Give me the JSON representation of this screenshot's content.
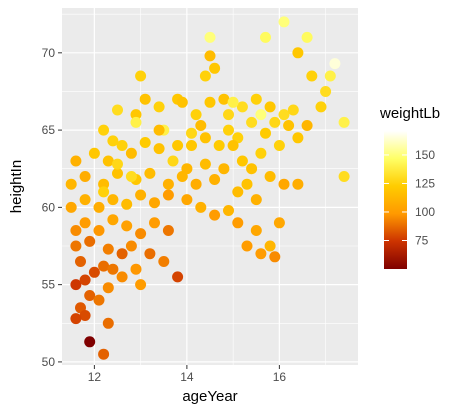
{
  "chart_data": {
    "type": "scatter",
    "title": "",
    "xlabel": "ageYear",
    "ylabel": "heightIn",
    "xlim": [
      11.3,
      17.7
    ],
    "ylim": [
      49.8,
      72.9
    ],
    "x_ticks": [
      12,
      14,
      16
    ],
    "y_ticks": [
      50,
      55,
      60,
      65,
      70
    ],
    "x_tick_labels": [
      "12",
      "14",
      "16"
    ],
    "y_tick_labels": [
      "50",
      "55",
      "60",
      "65",
      "70"
    ],
    "grid": true,
    "legend": {
      "title": "weightLb",
      "placement": "right",
      "type": "colorbar",
      "range": [
        50,
        171
      ],
      "ticks": [
        75,
        100,
        125,
        150
      ],
      "tick_labels": [
        "75",
        "100",
        "125",
        "150"
      ],
      "colors": [
        "#7f0000",
        "#cc3300",
        "#ff9900",
        "#ffcc00",
        "#ffff66",
        "#ffffff"
      ]
    },
    "colors": {
      "panel_background": "#ebebeb",
      "grid_line": "#ffffff",
      "low": "#8b0000",
      "high": "#ffffff"
    },
    "points": [
      [
        11.9,
        51.3,
        50
      ],
      [
        12.2,
        50.5,
        85
      ],
      [
        12.3,
        52.5,
        88
      ],
      [
        11.7,
        53.5,
        83
      ],
      [
        11.8,
        53.0,
        80
      ],
      [
        11.6,
        52.8,
        78
      ],
      [
        11.9,
        54.3,
        85
      ],
      [
        12.1,
        54.0,
        90
      ],
      [
        12.3,
        54.8,
        95
      ],
      [
        11.6,
        55.0,
        75
      ],
      [
        11.8,
        55.3,
        78
      ],
      [
        12.0,
        55.8,
        80
      ],
      [
        11.7,
        56.5,
        85
      ],
      [
        12.2,
        56.2,
        88
      ],
      [
        12.4,
        56.0,
        90
      ],
      [
        12.6,
        55.5,
        95
      ],
      [
        12.9,
        56.0,
        98
      ],
      [
        13.0,
        55.0,
        100
      ],
      [
        11.6,
        57.5,
        90
      ],
      [
        11.9,
        57.8,
        88
      ],
      [
        12.3,
        57.3,
        92
      ],
      [
        12.6,
        57.0,
        85
      ],
      [
        12.8,
        57.5,
        95
      ],
      [
        13.2,
        57.0,
        88
      ],
      [
        13.5,
        56.5,
        92
      ],
      [
        13.8,
        55.5,
        78
      ],
      [
        11.6,
        58.5,
        95
      ],
      [
        11.8,
        59.0,
        100
      ],
      [
        12.1,
        58.5,
        98
      ],
      [
        12.4,
        59.2,
        105
      ],
      [
        12.7,
        58.8,
        102
      ],
      [
        13.0,
        58.3,
        95
      ],
      [
        13.3,
        59.0,
        100
      ],
      [
        13.6,
        58.5,
        90
      ],
      [
        11.5,
        60.0,
        105
      ],
      [
        11.8,
        60.5,
        110
      ],
      [
        12.1,
        60.0,
        108
      ],
      [
        12.4,
        60.5,
        112
      ],
      [
        12.7,
        60.2,
        115
      ],
      [
        13.0,
        60.8,
        110
      ],
      [
        13.3,
        60.3,
        105
      ],
      [
        13.6,
        60.8,
        100
      ],
      [
        11.5,
        61.5,
        112
      ],
      [
        11.8,
        62.0,
        108
      ],
      [
        12.2,
        61.5,
        115
      ],
      [
        12.5,
        62.2,
        118
      ],
      [
        12.9,
        61.8,
        120
      ],
      [
        13.2,
        62.2,
        115
      ],
      [
        13.6,
        61.5,
        110
      ],
      [
        13.9,
        62.0,
        112
      ],
      [
        11.6,
        63.0,
        110
      ],
      [
        12.0,
        63.5,
        120
      ],
      [
        12.3,
        63.0,
        118
      ],
      [
        12.6,
        64.0,
        125
      ],
      [
        12.8,
        63.5,
        115
      ],
      [
        13.1,
        64.2,
        122
      ],
      [
        13.4,
        63.8,
        118
      ],
      [
        13.8,
        64.0,
        120
      ],
      [
        12.2,
        65.0,
        125
      ],
      [
        12.5,
        66.3,
        130
      ],
      [
        12.9,
        66.0,
        120
      ],
      [
        13.1,
        67.0,
        118
      ],
      [
        13.4,
        66.5,
        125
      ],
      [
        13.8,
        67.0,
        120
      ],
      [
        13.0,
        68.5,
        125
      ],
      [
        14.0,
        62.5,
        112
      ],
      [
        14.2,
        61.5,
        108
      ],
      [
        14.4,
        62.8,
        115
      ],
      [
        14.6,
        61.8,
        110
      ],
      [
        14.8,
        62.5,
        112
      ],
      [
        14.1,
        64.0,
        120
      ],
      [
        14.4,
        64.5,
        118
      ],
      [
        14.7,
        64.0,
        122
      ],
      [
        14.9,
        65.0,
        125
      ],
      [
        14.2,
        66.0,
        125
      ],
      [
        14.5,
        66.8,
        120
      ],
      [
        14.8,
        67.0,
        118
      ],
      [
        14.4,
        68.5,
        125
      ],
      [
        14.6,
        69.0,
        120
      ],
      [
        14.5,
        69.8,
        115
      ],
      [
        14.9,
        66.0,
        128
      ],
      [
        14.0,
        60.5,
        105
      ],
      [
        14.3,
        60.0,
        110
      ],
      [
        14.6,
        59.5,
        100
      ],
      [
        14.9,
        59.8,
        112
      ],
      [
        15.1,
        61.0,
        115
      ],
      [
        15.3,
        61.5,
        118
      ],
      [
        15.5,
        60.5,
        110
      ],
      [
        15.2,
        63.0,
        120
      ],
      [
        15.4,
        62.5,
        118
      ],
      [
        15.6,
        63.5,
        125
      ],
      [
        15.8,
        62.0,
        115
      ],
      [
        15.1,
        64.5,
        125
      ],
      [
        15.4,
        65.5,
        130
      ],
      [
        15.7,
        64.8,
        122
      ],
      [
        15.9,
        65.5,
        128
      ],
      [
        15.2,
        66.5,
        130
      ],
      [
        15.5,
        67.0,
        125
      ],
      [
        15.8,
        66.5,
        120
      ],
      [
        15.1,
        59.0,
        100
      ],
      [
        15.5,
        58.5,
        105
      ],
      [
        15.8,
        57.5,
        112
      ],
      [
        15.6,
        57.0,
        100
      ],
      [
        15.9,
        56.8,
        95
      ],
      [
        15.3,
        57.5,
        100
      ],
      [
        16.0,
        64.0,
        125
      ],
      [
        16.2,
        65.3,
        118
      ],
      [
        16.4,
        64.5,
        120
      ],
      [
        16.6,
        65.3,
        112
      ],
      [
        16.1,
        66.0,
        130
      ],
      [
        16.3,
        66.3,
        128
      ],
      [
        16.1,
        61.5,
        105
      ],
      [
        16.0,
        59.0,
        105
      ],
      [
        16.4,
        61.5,
        108
      ],
      [
        16.9,
        66.5,
        125
      ],
      [
        17.1,
        68.5,
        140
      ],
      [
        17.2,
        69.3,
        165
      ],
      [
        17.0,
        67.5,
        130
      ],
      [
        17.4,
        65.5,
        140
      ],
      [
        17.4,
        62.0,
        130
      ],
      [
        15.7,
        71.0,
        145
      ],
      [
        16.1,
        72.0,
        150
      ],
      [
        16.6,
        71.0,
        145
      ],
      [
        16.7,
        68.5,
        125
      ],
      [
        16.4,
        70.0,
        120
      ],
      [
        14.5,
        71.0,
        150
      ],
      [
        15.0,
        66.8,
        140
      ],
      [
        15.6,
        66.0,
        150
      ],
      [
        13.5,
        65.0,
        140
      ],
      [
        12.9,
        65.5,
        140
      ],
      [
        12.4,
        64.3,
        125
      ],
      [
        12.2,
        61.0,
        125
      ],
      [
        12.5,
        62.8,
        128
      ],
      [
        12.8,
        62.0,
        130
      ],
      [
        13.7,
        63.0,
        128
      ],
      [
        14.1,
        64.8,
        128
      ],
      [
        13.4,
        65.0,
        115
      ],
      [
        13.9,
        66.8,
        118
      ],
      [
        14.3,
        65.3,
        115
      ],
      [
        15.0,
        64.0,
        118
      ]
    ]
  }
}
